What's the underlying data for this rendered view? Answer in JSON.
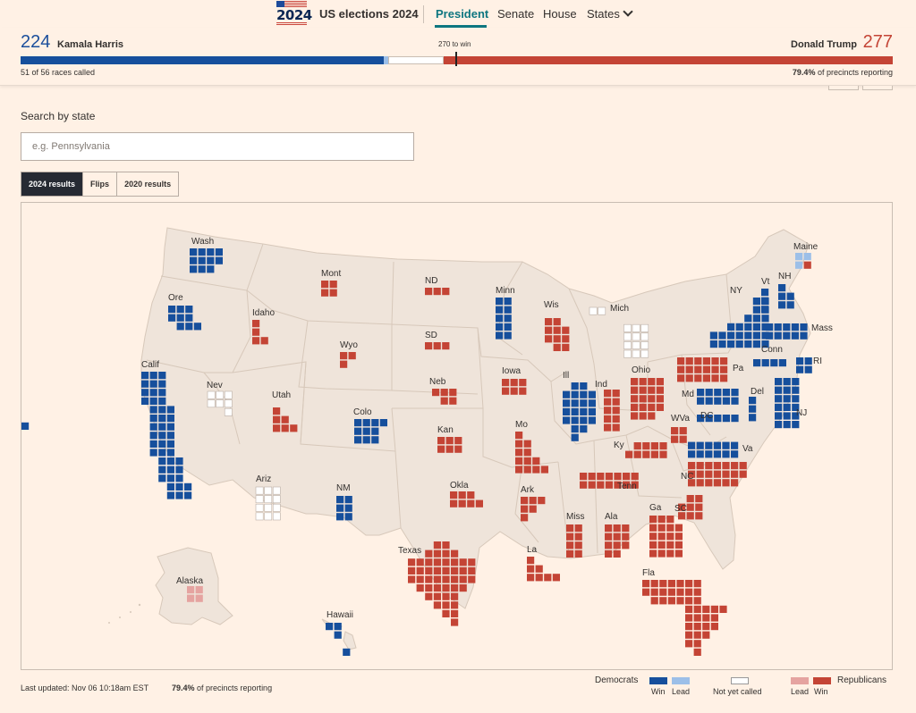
{
  "nav": {
    "logo_year": "2024",
    "title": "US elections 2024",
    "items": [
      "President",
      "Senate",
      "House",
      "States"
    ]
  },
  "results": {
    "dem_votes": "224",
    "dem_name": "Kamala Harris",
    "rep_votes": "277",
    "rep_name": "Donald Trump",
    "to_win": "270 to win",
    "called_text": "51 of 56 races called",
    "reporting_pct": "79.4%",
    "reporting_text": " of precincts reporting",
    "bar": {
      "dem_win": 224,
      "dem_lead": 3,
      "uncalled": 34,
      "rep_lead": 0,
      "rep_win": 277,
      "total": 538
    }
  },
  "search": {
    "label": "Search by state",
    "placeholder": "e.g. Pennsylvania"
  },
  "tabs": [
    "2024 results",
    "Flips",
    "2020 results"
  ],
  "colors": {
    "dem_win": "#164f9c",
    "dem_lead": "#9cbfe8",
    "rep_win": "#c44435",
    "rep_lead": "#e5a3a0",
    "uncalled": "#ffffff",
    "land": "#efe4da",
    "border": "#d7c8ba"
  },
  "map_states": [
    {
      "label": "Wash",
      "status": "dem_win"
    },
    {
      "label": "Ore",
      "status": "dem_win"
    },
    {
      "label": "Calif",
      "status": "dem_win"
    },
    {
      "label": "Nev",
      "status": "uncalled"
    },
    {
      "label": "Idaho",
      "status": "rep_win"
    },
    {
      "label": "Mont",
      "status": "rep_win"
    },
    {
      "label": "Wyo",
      "status": "rep_win"
    },
    {
      "label": "Utah",
      "status": "rep_win"
    },
    {
      "label": "Ariz",
      "status": "uncalled"
    },
    {
      "label": "Colo",
      "status": "dem_win"
    },
    {
      "label": "NM",
      "status": "dem_win"
    },
    {
      "label": "ND",
      "status": "rep_win"
    },
    {
      "label": "SD",
      "status": "rep_win"
    },
    {
      "label": "Neb",
      "status": "rep_win"
    },
    {
      "label": "Kan",
      "status": "rep_win"
    },
    {
      "label": "Okla",
      "status": "rep_win"
    },
    {
      "label": "Texas",
      "status": "rep_win"
    },
    {
      "label": "Minn",
      "status": "dem_win"
    },
    {
      "label": "Iowa",
      "status": "rep_win"
    },
    {
      "label": "Mo",
      "status": "rep_win"
    },
    {
      "label": "Ark",
      "status": "rep_win"
    },
    {
      "label": "La",
      "status": "rep_win"
    },
    {
      "label": "Wis",
      "status": "rep_win"
    },
    {
      "label": "Ill",
      "status": "dem_win"
    },
    {
      "label": "Mich",
      "status": "uncalled"
    },
    {
      "label": "Ind",
      "status": "rep_win"
    },
    {
      "label": "Ohio",
      "status": "rep_win"
    },
    {
      "label": "Ky",
      "status": "rep_win"
    },
    {
      "label": "Tenn",
      "status": "rep_win"
    },
    {
      "label": "Miss",
      "status": "rep_win"
    },
    {
      "label": "Ala",
      "status": "rep_win"
    },
    {
      "label": "Ga",
      "status": "rep_win"
    },
    {
      "label": "Fla",
      "status": "rep_win"
    },
    {
      "label": "SC",
      "status": "rep_win"
    },
    {
      "label": "NC",
      "status": "rep_win"
    },
    {
      "label": "Va",
      "status": "dem_win"
    },
    {
      "label": "WVa",
      "status": "rep_win"
    },
    {
      "label": "Pa",
      "status": "rep_win"
    },
    {
      "label": "NY",
      "status": "dem_win"
    },
    {
      "label": "Vt",
      "status": "dem_win"
    },
    {
      "label": "NH",
      "status": "dem_win"
    },
    {
      "label": "Maine",
      "status": "mixed"
    },
    {
      "label": "Mass",
      "status": "dem_win"
    },
    {
      "label": "Conn",
      "status": "dem_win"
    },
    {
      "label": "RI",
      "status": "dem_win"
    },
    {
      "label": "NJ",
      "status": "dem_win"
    },
    {
      "label": "Del",
      "status": "dem_win"
    },
    {
      "label": "Md",
      "status": "dem_win"
    },
    {
      "label": "DC",
      "status": "dem_win"
    },
    {
      "label": "Alaska",
      "status": "rep_lead"
    },
    {
      "label": "Hawaii",
      "status": "dem_win"
    }
  ],
  "footer": {
    "updated": "Last updated: Nov 06 10:18am EST",
    "reporting_pct": "79.4%",
    "reporting_text": " of precincts reporting"
  },
  "legend": {
    "democrats": "Democrats",
    "republicans": "Republicans",
    "win": "Win",
    "lead": "Lead",
    "not_called": "Not yet called"
  }
}
